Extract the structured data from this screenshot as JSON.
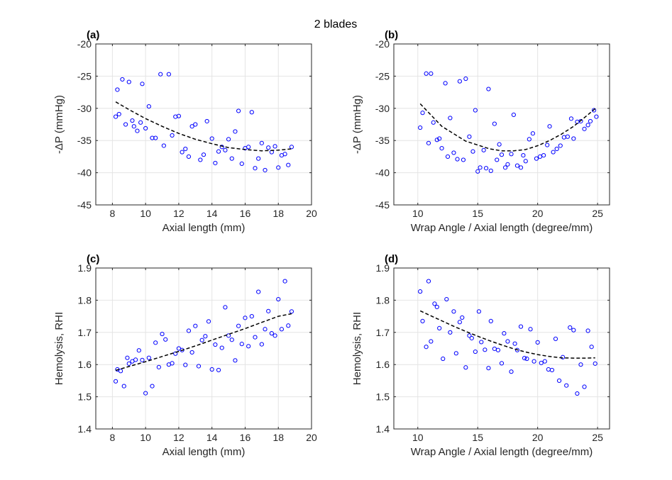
{
  "figure": {
    "title": "2 blades"
  },
  "chart_data": [
    {
      "type": "scatter",
      "panel_label": "(a)",
      "xlabel": "Axial length (mm)",
      "ylabel": "-ΔP (mmHg)",
      "xlim": [
        7,
        20
      ],
      "ylim": [
        -45,
        -20
      ],
      "xticks": [
        8,
        10,
        12,
        14,
        16,
        18,
        20
      ],
      "yticks": [
        -45,
        -40,
        -35,
        -30,
        -25,
        -20
      ],
      "grid": true,
      "marker_color": "#0000ff",
      "fit_color": "#000000",
      "points": {
        "x": [
          8.2,
          8.3,
          8.4,
          8.6,
          8.8,
          9.0,
          9.2,
          9.3,
          9.5,
          9.7,
          9.8,
          10.0,
          10.2,
          10.4,
          10.6,
          10.9,
          11.1,
          11.4,
          11.6,
          11.8,
          12.0,
          12.2,
          12.4,
          12.6,
          12.8,
          13.0,
          13.3,
          13.5,
          13.7,
          14.0,
          14.2,
          14.4,
          14.6,
          14.8,
          15.0,
          15.2,
          15.4,
          15.6,
          15.8,
          16.0,
          16.2,
          16.4,
          16.6,
          16.8,
          17.0,
          17.2,
          17.4,
          17.6,
          17.8,
          18.0,
          18.2,
          18.4,
          18.6,
          18.8
        ],
        "y": [
          -31.3,
          -27.1,
          -30.9,
          -25.5,
          -32.5,
          -25.9,
          -31.9,
          -32.8,
          -33.5,
          -32.2,
          -26.2,
          -33.1,
          -29.7,
          -34.6,
          -34.6,
          -24.7,
          -35.8,
          -24.7,
          -34.2,
          -31.3,
          -31.2,
          -36.8,
          -36.3,
          -37.5,
          -32.8,
          -32.5,
          -38.0,
          -37.2,
          -32.0,
          -34.7,
          -38.5,
          -36.7,
          -36.0,
          -36.5,
          -34.8,
          -37.8,
          -33.6,
          -30.4,
          -38.6,
          -36.2,
          -36.0,
          -30.6,
          -39.3,
          -37.8,
          -35.4,
          -39.6,
          -36.1,
          -36.8,
          -35.9,
          -39.2,
          -37.3,
          -37.1,
          -38.8,
          -36.0
        ]
      },
      "fit": {
        "x": [
          8.2,
          9,
          10,
          11,
          12,
          13,
          14,
          15,
          16,
          17,
          18,
          18.8
        ],
        "y": [
          -29.0,
          -30.2,
          -31.6,
          -32.8,
          -33.9,
          -34.8,
          -35.5,
          -36.1,
          -36.4,
          -36.6,
          -36.5,
          -36.3
        ]
      }
    },
    {
      "type": "scatter",
      "panel_label": "(b)",
      "xlabel": "Wrap Angle / Axial length (degree/mm)",
      "ylabel": "-ΔP (mmHg)",
      "xlim": [
        8,
        26
      ],
      "ylim": [
        -45,
        -20
      ],
      "xticks": [
        10,
        15,
        20,
        25
      ],
      "yticks": [
        -45,
        -40,
        -35,
        -30,
        -25,
        -20
      ],
      "grid": true,
      "marker_color": "#0000ff",
      "fit_color": "#000000",
      "points": {
        "x": [
          10.2,
          10.4,
          10.7,
          10.9,
          11.1,
          11.3,
          11.6,
          11.8,
          12.0,
          12.3,
          12.5,
          12.7,
          13.0,
          13.3,
          13.5,
          13.8,
          14.0,
          14.3,
          14.6,
          14.8,
          15.0,
          15.2,
          15.5,
          15.7,
          15.9,
          16.1,
          16.4,
          16.6,
          16.8,
          17.0,
          17.3,
          17.5,
          17.8,
          18.0,
          18.3,
          18.6,
          18.8,
          19.0,
          19.3,
          19.6,
          19.9,
          20.2,
          20.5,
          20.8,
          21.0,
          21.3,
          21.6,
          21.9,
          22.2,
          22.5,
          22.8,
          23.0,
          23.3,
          23.6,
          23.9,
          24.2,
          24.4,
          24.7,
          24.9
        ],
        "y": [
          -33.0,
          -30.7,
          -24.6,
          -35.4,
          -24.6,
          -32.2,
          -34.9,
          -34.7,
          -36.2,
          -26.1,
          -37.5,
          -31.5,
          -36.9,
          -37.9,
          -25.8,
          -38.0,
          -25.4,
          -34.4,
          -36.7,
          -30.3,
          -39.8,
          -39.2,
          -36.5,
          -39.3,
          -27.0,
          -39.7,
          -32.4,
          -38.0,
          -35.6,
          -37.2,
          -39.2,
          -38.7,
          -37.1,
          -31.0,
          -38.9,
          -39.2,
          -37.3,
          -38.2,
          -34.8,
          -33.9,
          -37.8,
          -37.5,
          -37.3,
          -35.7,
          -32.8,
          -36.8,
          -36.3,
          -35.8,
          -34.5,
          -34.4,
          -31.6,
          -34.7,
          -32.1,
          -32.0,
          -33.2,
          -32.6,
          -32.0,
          -30.3,
          -31.3
        ]
      },
      "fit": {
        "x": [
          10.2,
          12,
          14,
          16,
          17,
          18,
          19,
          20,
          21,
          22,
          23,
          24,
          24.9
        ],
        "y": [
          -29.3,
          -32.8,
          -35.1,
          -36.3,
          -36.6,
          -36.6,
          -36.4,
          -35.8,
          -35.0,
          -34.0,
          -32.8,
          -31.3,
          -29.9
        ]
      }
    },
    {
      "type": "scatter",
      "panel_label": "(c)",
      "xlabel": "Axial length (mm)",
      "ylabel": "Hemolysis, RHI",
      "xlim": [
        7,
        20
      ],
      "ylim": [
        1.4,
        1.9
      ],
      "xticks": [
        8,
        10,
        12,
        14,
        16,
        18,
        20
      ],
      "yticks": [
        1.4,
        1.5,
        1.6,
        1.7,
        1.8,
        1.9
      ],
      "grid": true,
      "marker_color": "#0000ff",
      "fit_color": "#000000",
      "points": {
        "x": [
          8.2,
          8.3,
          8.5,
          8.7,
          8.9,
          9.0,
          9.2,
          9.4,
          9.6,
          9.8,
          10.0,
          10.2,
          10.4,
          10.6,
          10.8,
          11.0,
          11.2,
          11.4,
          11.6,
          11.8,
          12.0,
          12.2,
          12.4,
          12.6,
          12.8,
          13.0,
          13.2,
          13.4,
          13.6,
          13.8,
          14.0,
          14.2,
          14.4,
          14.6,
          14.8,
          15.0,
          15.2,
          15.4,
          15.6,
          15.8,
          16.0,
          16.2,
          16.4,
          16.6,
          16.8,
          17.0,
          17.2,
          17.4,
          17.6,
          17.8,
          18.0,
          18.2,
          18.4,
          18.6,
          18.8
        ],
        "y": [
          1.548,
          1.585,
          1.58,
          1.533,
          1.621,
          1.603,
          1.61,
          1.615,
          1.644,
          1.614,
          1.511,
          1.621,
          1.533,
          1.668,
          1.592,
          1.695,
          1.678,
          1.6,
          1.604,
          1.634,
          1.65,
          1.645,
          1.599,
          1.705,
          1.638,
          1.72,
          1.595,
          1.676,
          1.688,
          1.734,
          1.585,
          1.662,
          1.583,
          1.652,
          1.778,
          1.69,
          1.677,
          1.613,
          1.72,
          1.664,
          1.745,
          1.657,
          1.75,
          1.685,
          1.826,
          1.663,
          1.71,
          1.766,
          1.697,
          1.69,
          1.803,
          1.71,
          1.859,
          1.721,
          1.765
        ]
      },
      "fit": {
        "x": [
          8.2,
          9,
          10,
          11,
          12,
          13,
          14,
          15,
          16,
          17,
          18,
          18.8
        ],
        "y": [
          1.582,
          1.594,
          1.609,
          1.625,
          1.641,
          1.658,
          1.676,
          1.694,
          1.712,
          1.731,
          1.75,
          1.758
        ]
      }
    },
    {
      "type": "scatter",
      "panel_label": "(d)",
      "xlabel": "Wrap Angle / Axial length (degree/mm)",
      "ylabel": "Hemolysis, RHI",
      "xlim": [
        8,
        26
      ],
      "ylim": [
        1.4,
        1.9
      ],
      "xticks": [
        10,
        15,
        20,
        25
      ],
      "yticks": [
        1.4,
        1.5,
        1.6,
        1.7,
        1.8,
        1.9
      ],
      "grid": true,
      "marker_color": "#0000ff",
      "fit_color": "#000000",
      "points": {
        "x": [
          10.2,
          10.4,
          10.7,
          10.9,
          11.1,
          11.4,
          11.6,
          11.8,
          12.1,
          12.4,
          12.7,
          13.0,
          13.2,
          13.5,
          13.7,
          14.0,
          14.3,
          14.5,
          14.8,
          15.1,
          15.3,
          15.6,
          15.9,
          16.1,
          16.4,
          16.7,
          17.0,
          17.2,
          17.5,
          17.8,
          18.1,
          18.3,
          18.6,
          18.9,
          19.1,
          19.4,
          19.7,
          20.0,
          20.3,
          20.6,
          20.9,
          21.2,
          21.5,
          21.8,
          22.1,
          22.4,
          22.7,
          23.0,
          23.3,
          23.6,
          23.9,
          24.2,
          24.5,
          24.8
        ],
        "y": [
          1.827,
          1.735,
          1.655,
          1.859,
          1.672,
          1.789,
          1.779,
          1.713,
          1.618,
          1.803,
          1.7,
          1.765,
          1.635,
          1.732,
          1.746,
          1.591,
          1.69,
          1.682,
          1.64,
          1.765,
          1.67,
          1.646,
          1.589,
          1.735,
          1.649,
          1.645,
          1.604,
          1.697,
          1.672,
          1.578,
          1.665,
          1.645,
          1.718,
          1.62,
          1.618,
          1.71,
          1.61,
          1.669,
          1.605,
          1.61,
          1.585,
          1.583,
          1.68,
          1.55,
          1.623,
          1.535,
          1.715,
          1.707,
          1.51,
          1.6,
          1.531,
          1.705,
          1.655,
          1.603
        ]
      },
      "fit": {
        "x": [
          10.2,
          11,
          12,
          13,
          14,
          15,
          16,
          17,
          18,
          19,
          20,
          21,
          22,
          23,
          24,
          24.8
        ],
        "y": [
          1.767,
          1.753,
          1.736,
          1.719,
          1.703,
          1.688,
          1.674,
          1.661,
          1.649,
          1.639,
          1.631,
          1.625,
          1.621,
          1.62,
          1.62,
          1.621
        ]
      }
    }
  ]
}
